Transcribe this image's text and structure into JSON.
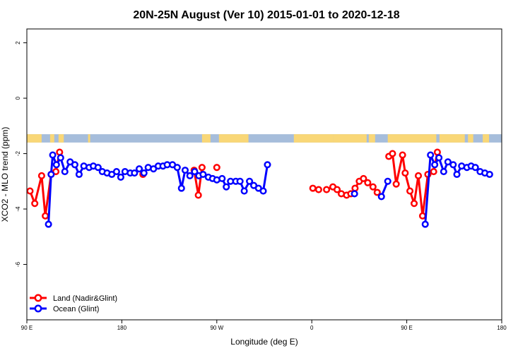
{
  "chart_data": {
    "type": "line",
    "title": "20N-25N August (Ver 10)   2015-01-01 to 2020-12-18",
    "xlabel": "Longitude (deg E)",
    "ylabel": "XCO2 - MLO trend (ppm)",
    "xlim": [
      90,
      540
    ],
    "ylim": [
      -8,
      2.5
    ],
    "x_ticks": [
      {
        "value": 90,
        "label": "90 E"
      },
      {
        "value": 180,
        "label": "180"
      },
      {
        "value": 270,
        "label": "90 W"
      },
      {
        "value": 360,
        "label": "0"
      },
      {
        "value": 450,
        "label": "90 E"
      },
      {
        "value": 540,
        "label": "180"
      }
    ],
    "y_ticks": [
      {
        "value": 2,
        "label": "2"
      },
      {
        "value": 0,
        "label": "0"
      },
      {
        "value": -2,
        "label": "-2"
      },
      {
        "value": -4,
        "label": "-4"
      },
      {
        "value": -6,
        "label": "-6"
      }
    ],
    "legend_position": "bottom-left",
    "map_band": {
      "y_range": [
        -1.6,
        -1.3
      ],
      "ocean_color": "#A6BDDB",
      "land_color": "#F9D777"
    },
    "series": [
      {
        "name": "Land (Nadir&Glint)",
        "color": "#FF0000",
        "segments": [
          [
            [
              93,
              -3.35
            ],
            [
              97.5,
              -3.8
            ],
            [
              104,
              -2.8
            ],
            [
              107.5,
              -4.25
            ],
            [
              113,
              -2.75
            ],
            [
              117.5,
              -2.65
            ],
            [
              121,
              -1.95
            ]
          ],
          [
            [
              200,
              -2.75
            ]
          ],
          [
            [
              248.5,
              -2.6
            ],
            [
              252.5,
              -3.5
            ],
            [
              256,
              -2.5
            ]
          ],
          [
            [
              270,
              -2.5
            ]
          ],
          [
            [
              361,
              -3.25
            ],
            [
              366.5,
              -3.3
            ]
          ],
          [
            [
              374,
              -3.3
            ],
            [
              380,
              -3.2
            ],
            [
              384,
              -3.3
            ],
            [
              388,
              -3.45
            ],
            [
              393,
              -3.5
            ],
            [
              397,
              -3.45
            ],
            [
              401,
              -3.25
            ],
            [
              405,
              -3.0
            ],
            [
              409,
              -2.9
            ],
            [
              413,
              -3.05
            ],
            [
              418,
              -3.2
            ],
            [
              422,
              -3.4
            ]
          ],
          [
            [
              433,
              -2.1
            ],
            [
              436.5,
              -2.0
            ],
            [
              440,
              -3.1
            ],
            [
              446,
              -2.05
            ],
            [
              448.5,
              -2.7
            ],
            [
              453,
              -3.35
            ],
            [
              457,
              -3.8
            ],
            [
              461,
              -2.8
            ],
            [
              465,
              -4.25
            ],
            [
              470,
              -2.75
            ],
            [
              475.5,
              -2.65
            ],
            [
              479,
              -1.95
            ]
          ]
        ]
      },
      {
        "name": "Ocean (Glint)",
        "color": "#0000FF",
        "segments": [
          [
            [
              110.5,
              -4.55
            ],
            [
              113,
              -2.75
            ],
            [
              114.5,
              -2.05
            ],
            [
              118,
              -2.4
            ],
            [
              122,
              -2.15
            ],
            [
              126,
              -2.65
            ],
            [
              131,
              -2.3
            ],
            [
              135.5,
              -2.4
            ],
            [
              139.5,
              -2.75
            ],
            [
              144,
              -2.45
            ],
            [
              149,
              -2.5
            ],
            [
              153,
              -2.45
            ],
            [
              157.5,
              -2.5
            ],
            [
              161.5,
              -2.65
            ],
            [
              166,
              -2.7
            ],
            [
              170.5,
              -2.75
            ],
            [
              175,
              -2.65
            ],
            [
              179,
              -2.85
            ],
            [
              183,
              -2.65
            ],
            [
              188,
              -2.7
            ],
            [
              192,
              -2.7
            ],
            [
              196.5,
              -2.55
            ],
            [
              201,
              -2.7
            ],
            [
              205,
              -2.5
            ],
            [
              210,
              -2.55
            ],
            [
              214.5,
              -2.45
            ],
            [
              219,
              -2.45
            ],
            [
              223,
              -2.4
            ],
            [
              228,
              -2.4
            ],
            [
              232.5,
              -2.5
            ],
            [
              236.5,
              -3.25
            ],
            [
              240,
              -2.6
            ],
            [
              244.5,
              -2.8
            ],
            [
              249,
              -2.65
            ],
            [
              253,
              -2.8
            ],
            [
              257,
              -2.75
            ],
            [
              262,
              -2.85
            ],
            [
              266,
              -2.9
            ],
            [
              270,
              -2.95
            ],
            [
              275,
              -2.9
            ],
            [
              279,
              -3.2
            ],
            [
              283,
              -3.0
            ],
            [
              288,
              -3.0
            ],
            [
              292,
              -3.0
            ],
            [
              296,
              -3.35
            ],
            [
              301,
              -3.0
            ],
            [
              305,
              -3.15
            ],
            [
              309.5,
              -3.25
            ],
            [
              314,
              -3.35
            ],
            [
              318,
              -2.4
            ]
          ],
          [
            [
              400.5,
              -3.45
            ]
          ],
          [
            [
              426,
              -3.55
            ],
            [
              432,
              -3.0
            ]
          ],
          [
            [
              467.5,
              -4.55
            ],
            [
              472.5,
              -2.05
            ],
            [
              476.5,
              -2.4
            ],
            [
              480.5,
              -2.15
            ],
            [
              485,
              -2.65
            ],
            [
              489,
              -2.3
            ],
            [
              494,
              -2.4
            ],
            [
              497.5,
              -2.75
            ],
            [
              502,
              -2.45
            ],
            [
              507,
              -2.5
            ],
            [
              511,
              -2.45
            ],
            [
              515,
              -2.5
            ],
            [
              519.5,
              -2.65
            ],
            [
              524,
              -2.7
            ],
            [
              528.5,
              -2.75
            ]
          ]
        ]
      }
    ]
  }
}
